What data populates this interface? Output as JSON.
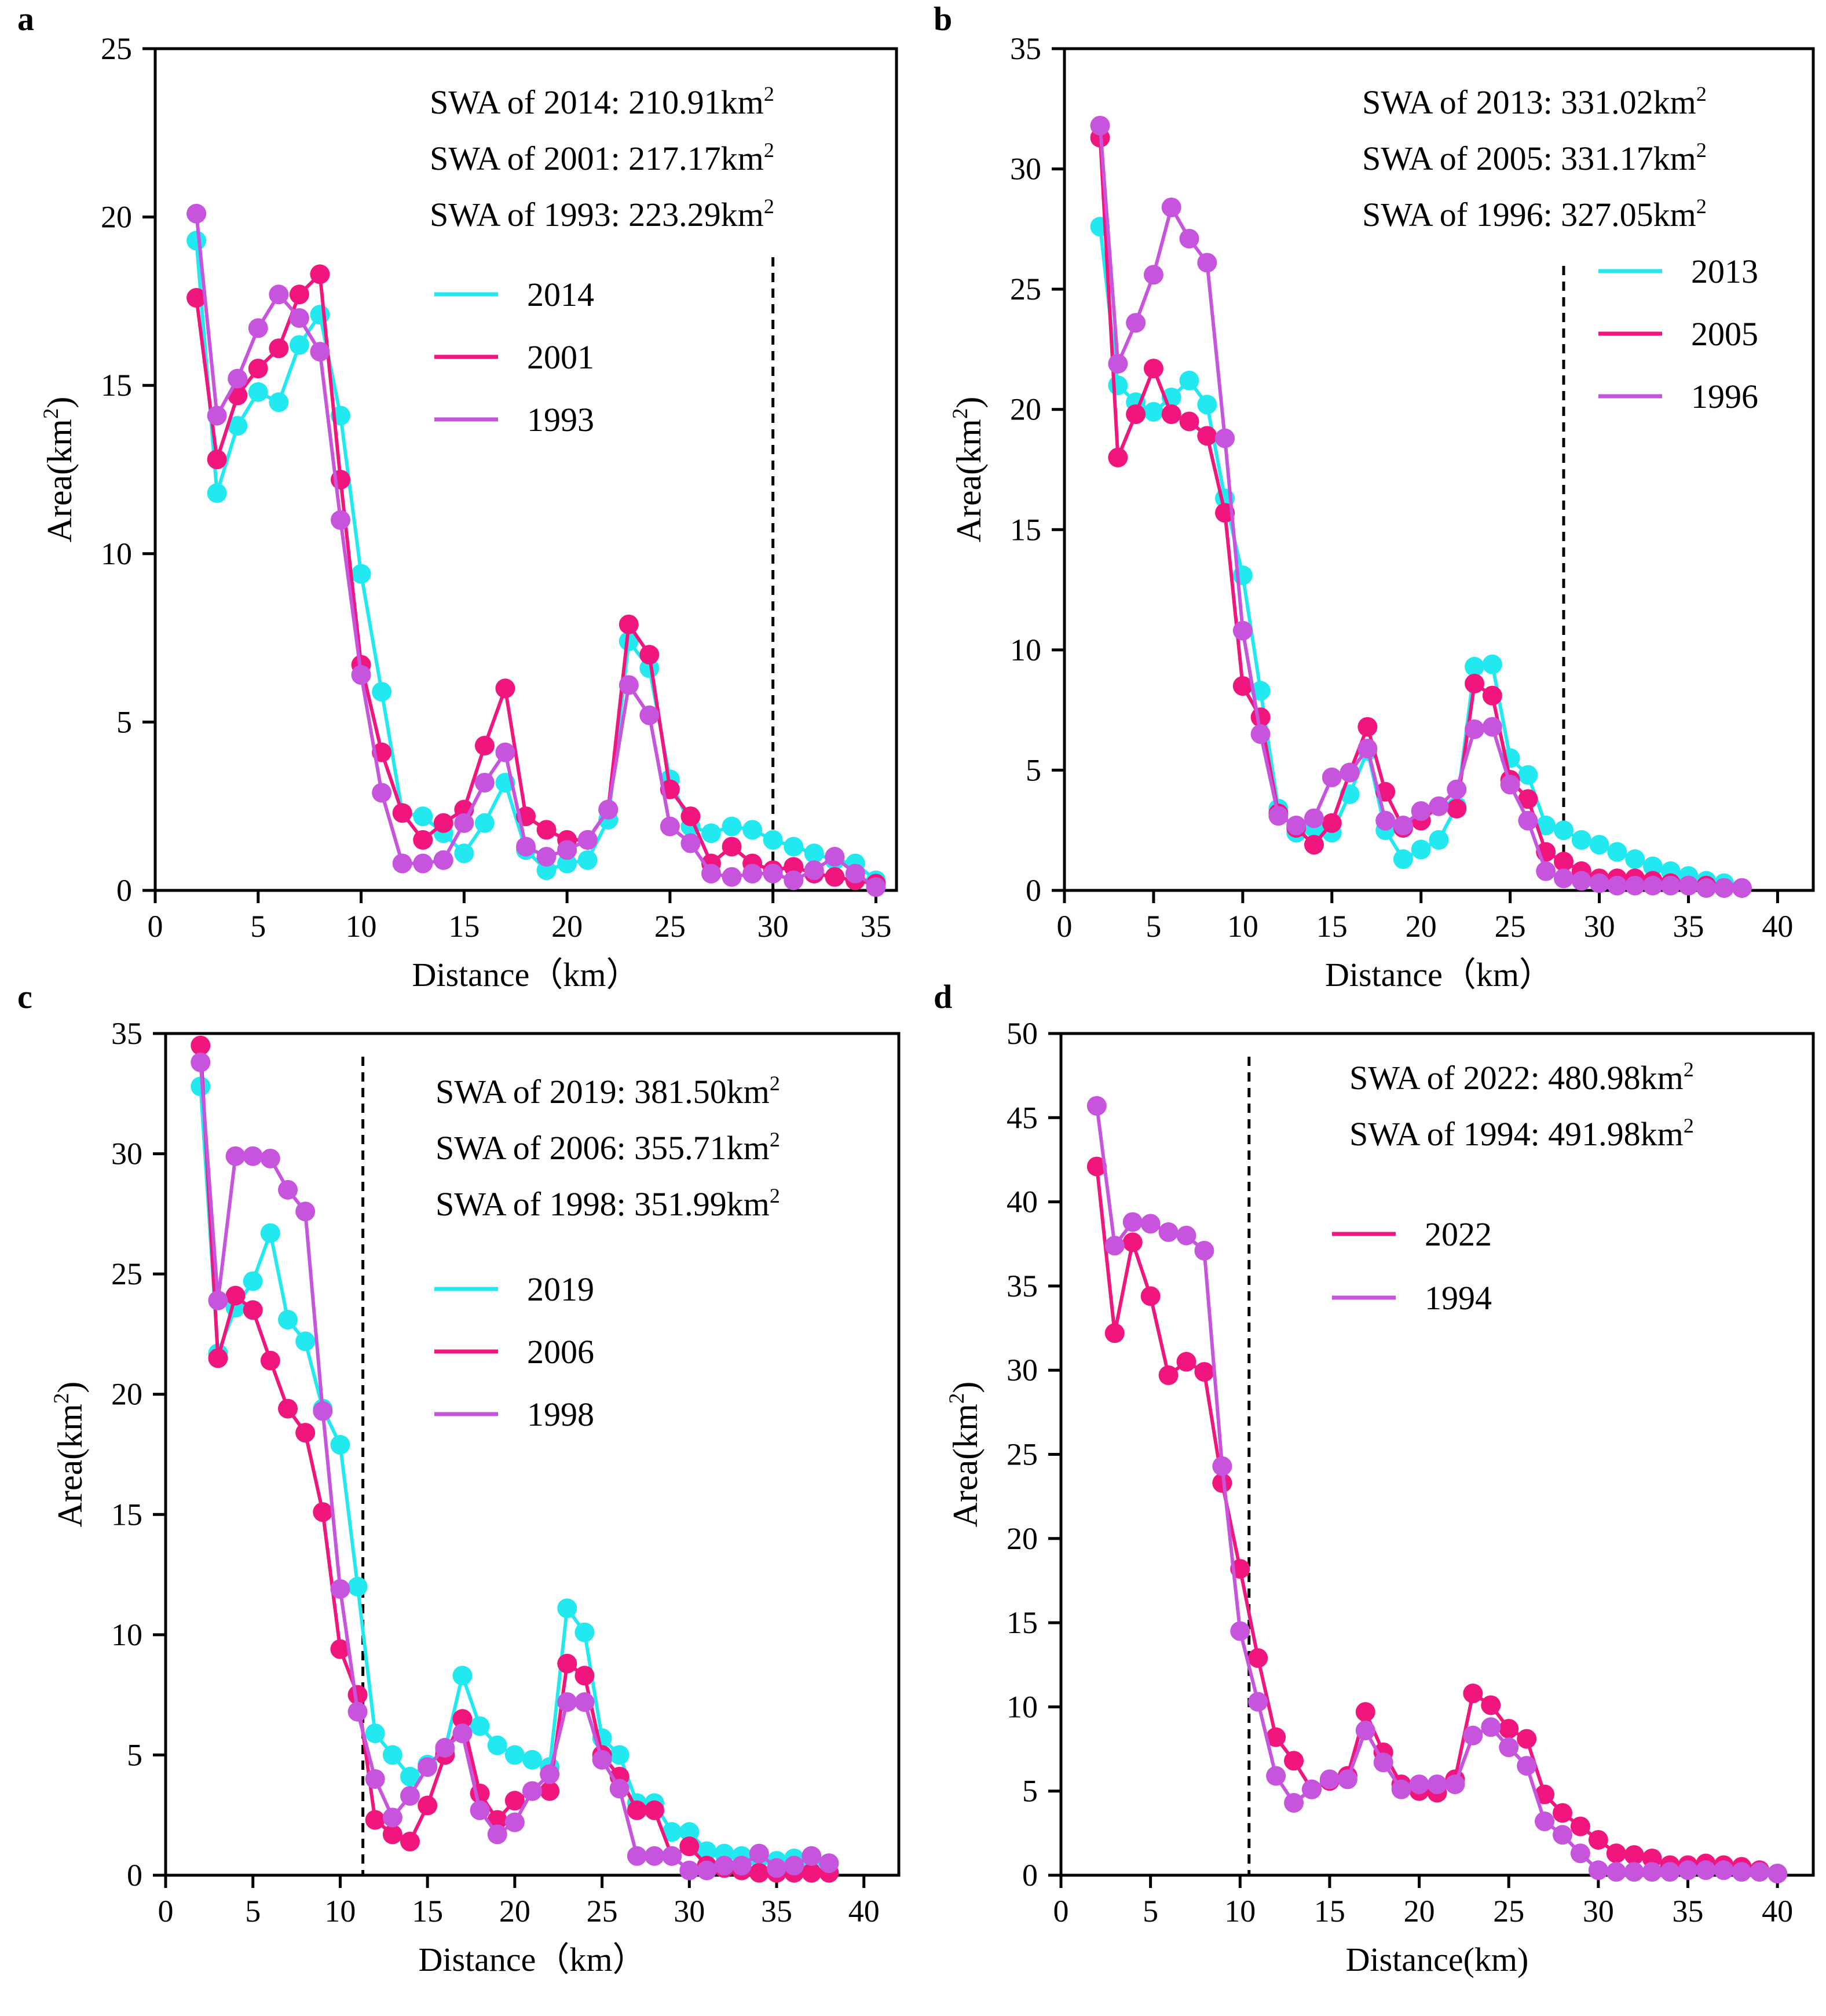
{
  "figure": {
    "description_free": true
  },
  "colors": {
    "cyan": "#22e8f0",
    "magenta": "#f0167e",
    "violet": "#c654dc",
    "axis": "#000000"
  },
  "chart_data": [
    {
      "panel": "a",
      "type": "line",
      "xlabel": "Distance（km）",
      "ylabel": "Area(km²)",
      "xlim": [
        0,
        36
      ],
      "ylim": [
        0,
        25
      ],
      "xticks": [
        0,
        5,
        10,
        15,
        20,
        25,
        30,
        35
      ],
      "yticks": [
        0,
        5,
        10,
        15,
        20,
        25
      ],
      "dashed_x": 30,
      "annotations": [
        "SWA of 2014: 210.91km²",
        "SWA of 2001: 217.17km²",
        "SWA of 1993: 223.29km²"
      ],
      "series": [
        {
          "name": "2014",
          "color": "#22e8f0",
          "x": [
            2,
            3,
            4,
            5,
            6,
            7,
            8,
            9,
            10,
            11,
            12,
            13,
            14,
            15,
            16,
            17,
            18,
            19,
            20,
            21,
            22,
            23,
            24,
            25,
            26,
            27,
            28,
            29,
            30,
            31,
            32,
            33,
            34,
            35
          ],
          "y": [
            19.3,
            11.8,
            13.8,
            14.8,
            14.5,
            16.2,
            17.1,
            14.1,
            9.4,
            5.9,
            2.3,
            2.2,
            1.7,
            1.1,
            2.0,
            3.2,
            1.2,
            0.6,
            0.8,
            0.9,
            2.1,
            7.4,
            6.6,
            3.3,
            1.9,
            1.7,
            1.9,
            1.8,
            1.5,
            1.3,
            1.1,
            0.9,
            0.8,
            0.3
          ]
        },
        {
          "name": "2001",
          "color": "#f0167e",
          "x": [
            2,
            3,
            4,
            5,
            6,
            7,
            8,
            9,
            10,
            11,
            12,
            13,
            14,
            15,
            16,
            17,
            18,
            19,
            20,
            21,
            22,
            23,
            24,
            25,
            26,
            27,
            28,
            29,
            30,
            31,
            32,
            33,
            34,
            35
          ],
          "y": [
            17.6,
            12.8,
            14.7,
            15.5,
            16.1,
            17.7,
            18.3,
            12.2,
            6.7,
            4.1,
            2.3,
            1.5,
            2.0,
            2.4,
            4.3,
            6.0,
            2.2,
            1.8,
            1.5,
            1.5,
            2.4,
            7.9,
            7.0,
            3.0,
            2.2,
            0.8,
            1.3,
            0.8,
            0.6,
            0.7,
            0.5,
            0.4,
            0.3,
            0.2
          ]
        },
        {
          "name": "1993",
          "color": "#c654dc",
          "x": [
            2,
            3,
            4,
            5,
            6,
            7,
            8,
            9,
            10,
            11,
            12,
            13,
            14,
            15,
            16,
            17,
            18,
            19,
            20,
            21,
            22,
            23,
            24,
            25,
            26,
            27,
            28,
            29,
            30,
            31,
            32,
            33,
            34,
            35
          ],
          "y": [
            20.1,
            14.1,
            15.2,
            16.7,
            17.7,
            17.0,
            16.0,
            11.0,
            6.4,
            2.9,
            0.8,
            0.8,
            0.9,
            2.0,
            3.2,
            4.1,
            1.3,
            1.0,
            1.2,
            1.5,
            2.4,
            6.1,
            5.2,
            1.9,
            1.4,
            0.5,
            0.4,
            0.5,
            0.5,
            0.3,
            0.6,
            1.0,
            0.5,
            0.1
          ]
        }
      ]
    },
    {
      "panel": "b",
      "type": "line",
      "xlabel": "Distance（km）",
      "ylabel": "Area(km²)",
      "xlim": [
        0,
        42
      ],
      "ylim": [
        0,
        35
      ],
      "xticks": [
        0,
        5,
        10,
        15,
        20,
        25,
        30,
        35,
        40
      ],
      "yticks": [
        0,
        5,
        10,
        15,
        20,
        25,
        30,
        35
      ],
      "dashed_x": 28,
      "annotations": [
        "SWA of 2013: 331.02km²",
        "SWA of 2005: 331.17km²",
        "SWA of 1996: 327.05km²"
      ],
      "series": [
        {
          "name": "2013",
          "color": "#22e8f0",
          "x": [
            2,
            3,
            4,
            5,
            6,
            7,
            8,
            9,
            10,
            11,
            12,
            13,
            14,
            15,
            16,
            17,
            18,
            19,
            20,
            21,
            22,
            23,
            24,
            25,
            26,
            27,
            28,
            29,
            30,
            31,
            32,
            33,
            34,
            35,
            36,
            37,
            38
          ],
          "y": [
            27.6,
            21.0,
            20.3,
            19.9,
            20.5,
            21.2,
            20.2,
            16.3,
            13.1,
            8.3,
            3.4,
            2.4,
            2.6,
            2.4,
            4.0,
            5.8,
            2.5,
            1.3,
            1.7,
            2.1,
            3.5,
            9.3,
            9.4,
            5.5,
            4.8,
            2.7,
            2.5,
            2.1,
            1.9,
            1.6,
            1.3,
            1.0,
            0.8,
            0.6,
            0.4,
            0.3,
            0.1
          ]
        },
        {
          "name": "2005",
          "color": "#f0167e",
          "x": [
            2,
            3,
            4,
            5,
            6,
            7,
            8,
            9,
            10,
            11,
            12,
            13,
            14,
            15,
            16,
            17,
            18,
            19,
            20,
            21,
            22,
            23,
            24,
            25,
            26,
            27,
            28,
            29,
            30,
            31,
            32,
            33,
            34,
            35,
            36,
            37,
            38
          ],
          "y": [
            31.3,
            18.0,
            19.8,
            21.7,
            19.8,
            19.5,
            18.9,
            15.7,
            8.5,
            7.2,
            3.2,
            2.6,
            1.9,
            2.8,
            4.9,
            6.8,
            4.1,
            2.6,
            2.9,
            3.5,
            3.4,
            8.6,
            8.1,
            4.6,
            3.8,
            1.6,
            1.2,
            0.8,
            0.5,
            0.5,
            0.5,
            0.4,
            0.3,
            0.2,
            0.2,
            0.1,
            0.1
          ]
        },
        {
          "name": "1996",
          "color": "#c654dc",
          "x": [
            2,
            3,
            4,
            5,
            6,
            7,
            8,
            9,
            10,
            11,
            12,
            13,
            14,
            15,
            16,
            17,
            18,
            19,
            20,
            21,
            22,
            23,
            24,
            25,
            26,
            27,
            28,
            29,
            30,
            31,
            32,
            33,
            34,
            35,
            36,
            37,
            38
          ],
          "y": [
            31.8,
            21.9,
            23.6,
            25.6,
            28.4,
            27.1,
            26.1,
            18.8,
            10.8,
            6.5,
            3.1,
            2.7,
            3.0,
            4.7,
            4.9,
            5.9,
            2.9,
            2.7,
            3.3,
            3.5,
            4.2,
            6.7,
            6.8,
            4.4,
            2.9,
            0.8,
            0.5,
            0.4,
            0.3,
            0.2,
            0.2,
            0.2,
            0.2,
            0.2,
            0.1,
            0.1,
            0.1
          ]
        }
      ]
    },
    {
      "panel": "c",
      "type": "line",
      "xlabel": "Distance（km）",
      "ylabel": "Area(km²)",
      "xlim": [
        0,
        42
      ],
      "ylim": [
        0,
        35
      ],
      "xticks": [
        0,
        5,
        10,
        15,
        20,
        25,
        30,
        35,
        40
      ],
      "yticks": [
        0,
        5,
        10,
        15,
        20,
        25,
        30,
        35
      ],
      "dashed_x": 11.3,
      "annotations": [
        "SWA of 2019: 381.50km²",
        "SWA of 2006: 355.71km²",
        "SWA of 1998: 351.99km²"
      ],
      "series": [
        {
          "name": "2019",
          "color": "#22e8f0",
          "x": [
            2,
            3,
            4,
            5,
            6,
            7,
            8,
            9,
            10,
            11,
            12,
            13,
            14,
            15,
            16,
            17,
            18,
            19,
            20,
            21,
            22,
            23,
            24,
            25,
            26,
            27,
            28,
            29,
            30,
            31,
            32,
            33,
            34,
            35,
            36,
            37,
            38
          ],
          "y": [
            32.8,
            21.7,
            23.6,
            24.7,
            26.7,
            23.1,
            22.2,
            19.4,
            17.9,
            12.0,
            5.9,
            5.0,
            4.1,
            4.6,
            5.2,
            8.3,
            6.2,
            5.4,
            5.0,
            4.8,
            4.5,
            11.1,
            10.1,
            5.7,
            5.0,
            3.0,
            3.0,
            1.8,
            1.8,
            1.0,
            0.9,
            0.8,
            0.7,
            0.6,
            0.7,
            0.6,
            0.5
          ]
        },
        {
          "name": "2006",
          "color": "#f0167e",
          "x": [
            2,
            3,
            4,
            5,
            6,
            7,
            8,
            9,
            10,
            11,
            12,
            13,
            14,
            15,
            16,
            17,
            18,
            19,
            20,
            21,
            22,
            23,
            24,
            25,
            26,
            27,
            28,
            29,
            30,
            31,
            32,
            33,
            34,
            35,
            36,
            37,
            38
          ],
          "y": [
            34.5,
            21.5,
            24.1,
            23.5,
            21.4,
            19.4,
            18.4,
            15.1,
            9.4,
            7.5,
            2.3,
            1.7,
            1.4,
            2.9,
            5.0,
            6.5,
            3.4,
            2.3,
            3.1,
            3.5,
            3.5,
            8.8,
            8.3,
            5.0,
            4.1,
            2.7,
            2.7,
            0.8,
            1.2,
            0.4,
            0.3,
            0.2,
            0.1,
            0.1,
            0.1,
            0.1,
            0.1
          ]
        },
        {
          "name": "1998",
          "color": "#c654dc",
          "x": [
            2,
            3,
            4,
            5,
            6,
            7,
            8,
            9,
            10,
            11,
            12,
            13,
            14,
            15,
            16,
            17,
            18,
            19,
            20,
            21,
            22,
            23,
            24,
            25,
            26,
            27,
            28,
            29,
            30,
            31,
            32,
            33,
            34,
            35,
            36,
            37,
            38
          ],
          "y": [
            33.8,
            23.9,
            29.9,
            29.9,
            29.8,
            28.5,
            27.6,
            19.3,
            11.9,
            6.8,
            4.0,
            2.4,
            3.3,
            4.5,
            5.3,
            5.9,
            2.7,
            1.7,
            2.2,
            3.5,
            4.2,
            7.2,
            7.2,
            4.8,
            3.6,
            0.8,
            0.8,
            0.8,
            0.2,
            0.2,
            0.4,
            0.4,
            0.9,
            0.3,
            0.4,
            0.8,
            0.5
          ]
        }
      ]
    },
    {
      "panel": "d",
      "type": "line",
      "xlabel": "Distance(km)",
      "ylabel": "Area(km²)",
      "xlim": [
        0,
        42
      ],
      "ylim": [
        0,
        50
      ],
      "xticks": [
        0,
        5,
        10,
        15,
        20,
        25,
        30,
        35,
        40
      ],
      "yticks": [
        0,
        5,
        10,
        15,
        20,
        25,
        30,
        35,
        40,
        45,
        50
      ],
      "dashed_x": 10.5,
      "annotations": [
        "SWA of 2022: 480.98km²",
        "SWA of 1994: 491.98km²"
      ],
      "series": [
        {
          "name": "2022",
          "color": "#f0167e",
          "x": [
            2,
            3,
            4,
            5,
            6,
            7,
            8,
            9,
            10,
            11,
            12,
            13,
            14,
            15,
            16,
            17,
            18,
            19,
            20,
            21,
            22,
            23,
            24,
            25,
            26,
            27,
            28,
            29,
            30,
            31,
            32,
            33,
            34,
            35,
            36,
            37,
            38,
            39,
            40
          ],
          "y": [
            42.1,
            32.2,
            37.6,
            34.4,
            29.7,
            30.5,
            29.9,
            23.3,
            18.2,
            12.9,
            8.2,
            6.8,
            5.1,
            5.6,
            5.9,
            9.7,
            7.3,
            5.4,
            5.0,
            4.9,
            5.7,
            10.8,
            10.1,
            8.7,
            8.1,
            4.8,
            3.7,
            2.9,
            2.1,
            1.3,
            1.2,
            1.0,
            0.6,
            0.6,
            0.7,
            0.6,
            0.5,
            0.3,
            0.1
          ]
        },
        {
          "name": "1994",
          "color": "#c654dc",
          "x": [
            2,
            3,
            4,
            5,
            6,
            7,
            8,
            9,
            10,
            11,
            12,
            13,
            14,
            15,
            16,
            17,
            18,
            19,
            20,
            21,
            22,
            23,
            24,
            25,
            26,
            27,
            28,
            29,
            30,
            31,
            32,
            33,
            34,
            35,
            36,
            37,
            38,
            39,
            40
          ],
          "y": [
            45.7,
            37.4,
            38.8,
            38.7,
            38.2,
            38.0,
            37.1,
            24.3,
            14.5,
            10.3,
            5.9,
            4.3,
            5.1,
            5.7,
            5.7,
            8.6,
            6.7,
            5.1,
            5.4,
            5.4,
            5.4,
            8.3,
            8.8,
            7.6,
            6.5,
            3.2,
            2.4,
            1.3,
            0.3,
            0.2,
            0.2,
            0.2,
            0.2,
            0.3,
            0.3,
            0.3,
            0.2,
            0.2,
            0.1
          ]
        }
      ]
    }
  ]
}
